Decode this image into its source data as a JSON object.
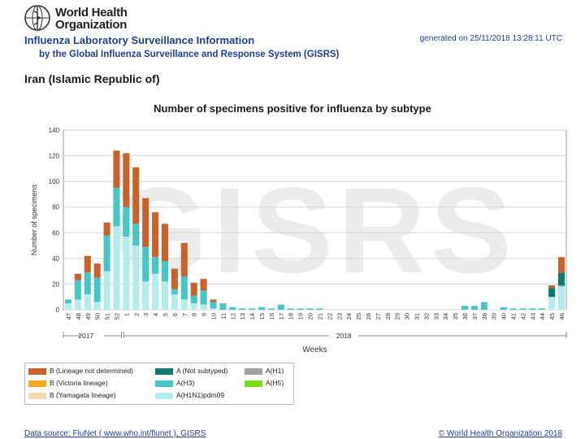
{
  "header": {
    "org_line1": "World Health",
    "org_line2": "Organization",
    "title": "Influenza Laboratory Surveillance Information",
    "subtitle": "by the Global Influenza Surveillance and Response System (GISRS)",
    "generated": "generated on 25/11/2018 13:28:11 UTC",
    "country": "Iran (Islamic Republic of)"
  },
  "watermark": "GISRS",
  "footer": {
    "source": "Data source: FluNet ( www.who.int/flunet ), GISRS",
    "copyright": "© World Health Organization 2018"
  },
  "colors": {
    "b_lineage_nd": "#c8622a",
    "b_victoria": "#f5a81c",
    "b_yamagata": "#f5d9b0",
    "a_not_subtyped": "#0f7a6e",
    "a_h3": "#47c6c6",
    "a_h1n1pdm09": "#b3ecec",
    "a_h1": "#a0a0a0",
    "a_h5": "#7cd91e"
  },
  "chart_data": {
    "type": "bar",
    "stacked": true,
    "title": "Number of specimens positive for influenza by subtype",
    "xlabel": "Weeks",
    "ylabel": "Number of specimens",
    "ylim": [
      0,
      140
    ],
    "yticks": [
      0,
      20,
      40,
      60,
      80,
      100,
      120,
      140
    ],
    "grid": true,
    "year_labels": [
      "2017",
      "2018"
    ],
    "categories": [
      "47",
      "48",
      "49",
      "50",
      "51",
      "52",
      "1",
      "2",
      "3",
      "4",
      "5",
      "6",
      "7",
      "8",
      "9",
      "10",
      "11",
      "12",
      "13",
      "14",
      "15",
      "16",
      "17",
      "18",
      "19",
      "20",
      "21",
      "22",
      "23",
      "24",
      "25",
      "26",
      "27",
      "28",
      "29",
      "30",
      "31",
      "32",
      "33",
      "34",
      "35",
      "36",
      "37",
      "38",
      "39",
      "40",
      "41",
      "42",
      "43",
      "44",
      "45",
      "46"
    ],
    "series": [
      {
        "name": "A(H1N1)pdm09",
        "color_key": "a_h1n1pdm09",
        "values": [
          5,
          8,
          12,
          6,
          30,
          65,
          57,
          50,
          22,
          28,
          22,
          12,
          8,
          5,
          4,
          1,
          0,
          0,
          0,
          0,
          0,
          0,
          0,
          0,
          0,
          0,
          0,
          0,
          0,
          0,
          0,
          0,
          0,
          0,
          0,
          0,
          0,
          0,
          0,
          0,
          0,
          0,
          0,
          0,
          0,
          0,
          0,
          0,
          0,
          0,
          10,
          18
        ]
      },
      {
        "name": "A(H3)",
        "color_key": "a_h3",
        "values": [
          3,
          15,
          17,
          19,
          28,
          30,
          23,
          17,
          27,
          13,
          16,
          4,
          18,
          6,
          11,
          5,
          5,
          2,
          1,
          1,
          2,
          1,
          4,
          1,
          1,
          1,
          1,
          0,
          0,
          0,
          0,
          0,
          0,
          0,
          0,
          0,
          0,
          0,
          0,
          0,
          0,
          3,
          3,
          6,
          0,
          2,
          1,
          1,
          1,
          1,
          0,
          1
        ]
      },
      {
        "name": "A (Not subtyped)",
        "color_key": "a_not_subtyped",
        "values": [
          0,
          0,
          0,
          0,
          0,
          0,
          0,
          0,
          0,
          0,
          0,
          0,
          0,
          0,
          0,
          0,
          0,
          0,
          0,
          0,
          0,
          0,
          0,
          0,
          0,
          0,
          0,
          0,
          0,
          0,
          0,
          0,
          0,
          0,
          0,
          0,
          0,
          0,
          0,
          0,
          0,
          0,
          0,
          0,
          0,
          0,
          0,
          0,
          0,
          0,
          7,
          10
        ]
      },
      {
        "name": "B (Lineage not determined)",
        "color_key": "b_lineage_nd",
        "values": [
          0,
          5,
          13,
          11,
          10,
          29,
          42,
          44,
          38,
          35,
          29,
          16,
          26,
          10,
          9,
          2,
          0,
          0,
          0,
          0,
          0,
          0,
          0,
          0,
          0,
          0,
          0,
          0,
          0,
          0,
          0,
          0,
          0,
          0,
          0,
          0,
          0,
          0,
          0,
          0,
          0,
          0,
          0,
          0,
          0,
          0,
          0,
          0,
          0,
          0,
          2,
          12
        ]
      }
    ],
    "legend": [
      {
        "label": "B (Lineage not determined)",
        "color_key": "b_lineage_nd"
      },
      {
        "label": "B (Victoria lineage)",
        "color_key": "b_victoria"
      },
      {
        "label": "B (Yamagata lineage)",
        "color_key": "b_yamagata"
      },
      {
        "label": "A (Not subtyped)",
        "color_key": "a_not_subtyped"
      },
      {
        "label": "A(H3)",
        "color_key": "a_h3"
      },
      {
        "label": "A(H1N1)pdm09",
        "color_key": "a_h1n1pdm09"
      },
      {
        "label": "A(H1)",
        "color_key": "a_h1"
      },
      {
        "label": "A(H5)",
        "color_key": "a_h5"
      }
    ],
    "legend_position": "bottom-left"
  }
}
